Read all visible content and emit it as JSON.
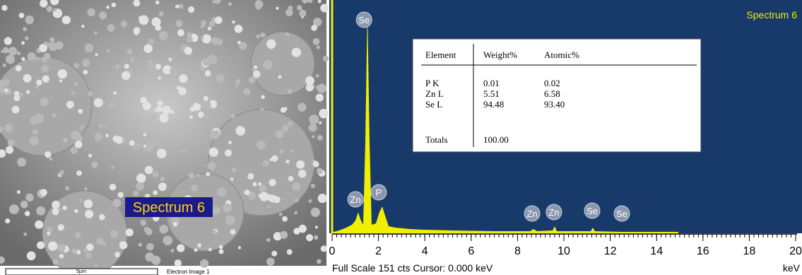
{
  "sem_image": {
    "label": "Spectrum 6",
    "scale_bar": "5µm",
    "caption": "Electron Image 1"
  },
  "spectrum": {
    "title": "Spectrum 6",
    "xlim": [
      0,
      20
    ],
    "xticks": [
      0,
      2,
      4,
      6,
      8,
      10,
      12,
      14,
      16,
      18,
      20
    ],
    "x_unit": "keV",
    "footer": "Full Scale 151 cts  Cursor: 0.000 keV",
    "peaks": [
      {
        "label": "Se",
        "x": 1.38
      },
      {
        "label": "Zn",
        "x": 1.01
      },
      {
        "label": "P",
        "x": 2.01
      },
      {
        "label": "Zn",
        "x": 8.63
      },
      {
        "label": "Zn",
        "x": 9.57
      },
      {
        "label": "Se",
        "x": 11.22
      },
      {
        "label": "Se",
        "x": 12.5
      }
    ],
    "table": {
      "header": [
        "Element",
        "Weight%",
        "Atomic%"
      ],
      "rows": [
        [
          "P K",
          "0.01",
          "0.02"
        ],
        [
          "Zn L",
          "5.51",
          "6.58"
        ],
        [
          "Se L",
          "94.48",
          "93.40"
        ]
      ],
      "totals": [
        "Totals",
        "100.00"
      ]
    }
  }
}
